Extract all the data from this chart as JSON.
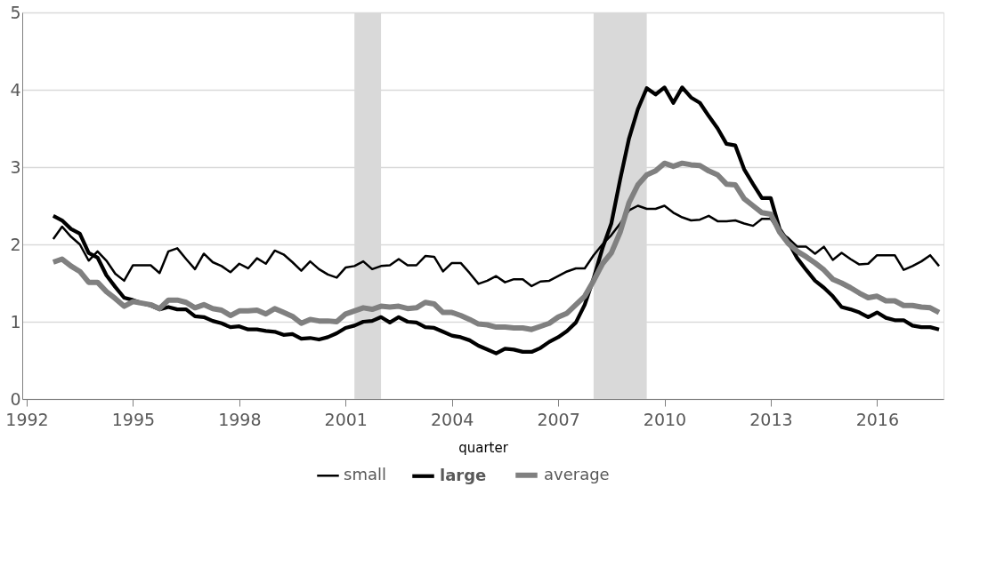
{
  "chart_data": {
    "type": "line",
    "xlabel": "quarter",
    "x": [
      1992.75,
      1993,
      1993.25,
      1993.5,
      1993.75,
      1994,
      1994.25,
      1994.5,
      1994.75,
      1995,
      1995.25,
      1995.5,
      1995.75,
      1996,
      1996.25,
      1996.5,
      1996.75,
      1997,
      1997.25,
      1997.5,
      1997.75,
      1998,
      1998.25,
      1998.5,
      1998.75,
      1999,
      1999.25,
      1999.5,
      1999.75,
      2000,
      2000.25,
      2000.5,
      2000.75,
      2001,
      2001.25,
      2001.5,
      2001.75,
      2002,
      2002.25,
      2002.5,
      2002.75,
      2003,
      2003.25,
      2003.5,
      2003.75,
      2004,
      2004.25,
      2004.5,
      2004.75,
      2005,
      2005.25,
      2005.5,
      2005.75,
      2006,
      2006.25,
      2006.5,
      2006.75,
      2007,
      2007.25,
      2007.5,
      2007.75,
      2008,
      2008.25,
      2008.5,
      2008.75,
      2009,
      2009.25,
      2009.5,
      2009.75,
      2010,
      2010.25,
      2010.5,
      2010.75,
      2011,
      2011.25,
      2011.5,
      2011.75,
      2012,
      2012.25,
      2012.5,
      2012.75,
      2013,
      2013.25,
      2013.5,
      2013.75,
      2014,
      2014.25,
      2014.5,
      2014.75,
      2015,
      2015.25,
      2015.5,
      2015.75,
      2016,
      2016.25,
      2016.5,
      2016.75,
      2017,
      2017.25,
      2017.5,
      2017.75
    ],
    "series": [
      {
        "name": "small",
        "color": "#000000",
        "values": [
          2.07,
          2.23,
          2.1,
          2.0,
          1.79,
          1.91,
          1.79,
          1.62,
          1.53,
          1.73,
          1.73,
          1.73,
          1.63,
          1.91,
          1.95,
          1.81,
          1.68,
          1.88,
          1.77,
          1.72,
          1.64,
          1.75,
          1.69,
          1.82,
          1.75,
          1.92,
          1.87,
          1.77,
          1.66,
          1.78,
          1.68,
          1.61,
          1.57,
          1.7,
          1.72,
          1.78,
          1.68,
          1.72,
          1.73,
          1.81,
          1.73,
          1.73,
          1.85,
          1.84,
          1.65,
          1.76,
          1.76,
          1.63,
          1.49,
          1.53,
          1.59,
          1.51,
          1.55,
          1.55,
          1.46,
          1.52,
          1.53,
          1.59,
          1.65,
          1.69,
          1.69,
          1.86,
          2.0,
          2.12,
          2.27,
          2.44,
          2.5,
          2.46,
          2.46,
          2.5,
          2.41,
          2.35,
          2.31,
          2.32,
          2.37,
          2.3,
          2.3,
          2.31,
          2.27,
          2.24,
          2.33,
          2.33,
          2.16,
          2.08,
          1.97,
          1.97,
          1.88,
          1.97,
          1.8,
          1.89,
          1.81,
          1.74,
          1.75,
          1.86,
          1.86,
          1.86,
          1.67,
          1.72,
          1.78,
          1.86,
          1.72
        ]
      },
      {
        "name": "large",
        "color": "#000000",
        "values": [
          2.37,
          2.31,
          2.2,
          2.14,
          1.89,
          1.83,
          1.6,
          1.45,
          1.31,
          1.28,
          1.24,
          1.21,
          1.16,
          1.19,
          1.16,
          1.16,
          1.07,
          1.06,
          1.01,
          0.98,
          0.93,
          0.94,
          0.9,
          0.9,
          0.88,
          0.87,
          0.83,
          0.84,
          0.78,
          0.79,
          0.77,
          0.8,
          0.85,
          0.92,
          0.95,
          1.0,
          1.01,
          1.06,
          0.99,
          1.06,
          1.0,
          0.99,
          0.93,
          0.92,
          0.87,
          0.82,
          0.8,
          0.76,
          0.69,
          0.64,
          0.59,
          0.65,
          0.64,
          0.61,
          0.61,
          0.66,
          0.74,
          0.8,
          0.88,
          0.99,
          1.22,
          1.56,
          1.95,
          2.27,
          2.84,
          3.37,
          3.75,
          4.02,
          3.94,
          4.03,
          3.83,
          4.03,
          3.9,
          3.83,
          3.66,
          3.5,
          3.3,
          3.28,
          2.97,
          2.78,
          2.6,
          2.6,
          2.2,
          2.03,
          1.82,
          1.67,
          1.53,
          1.44,
          1.33,
          1.19,
          1.16,
          1.12,
          1.06,
          1.12,
          1.05,
          1.02,
          1.02,
          0.95,
          0.93,
          0.93,
          0.9
        ]
      },
      {
        "name": "average",
        "color": "#808080",
        "values": [
          1.77,
          1.81,
          1.72,
          1.65,
          1.51,
          1.51,
          1.39,
          1.3,
          1.2,
          1.26,
          1.24,
          1.22,
          1.17,
          1.28,
          1.28,
          1.25,
          1.18,
          1.22,
          1.17,
          1.15,
          1.08,
          1.14,
          1.14,
          1.15,
          1.1,
          1.17,
          1.12,
          1.07,
          0.98,
          1.03,
          1.01,
          1.01,
          1.0,
          1.1,
          1.14,
          1.18,
          1.16,
          1.2,
          1.19,
          1.2,
          1.17,
          1.18,
          1.25,
          1.23,
          1.12,
          1.12,
          1.08,
          1.03,
          0.97,
          0.96,
          0.93,
          0.93,
          0.92,
          0.92,
          0.9,
          0.94,
          0.98,
          1.06,
          1.11,
          1.22,
          1.33,
          1.53,
          1.75,
          1.89,
          2.16,
          2.54,
          2.77,
          2.9,
          2.95,
          3.05,
          3.01,
          3.05,
          3.03,
          3.02,
          2.95,
          2.9,
          2.78,
          2.77,
          2.59,
          2.5,
          2.41,
          2.39,
          2.16,
          2.01,
          1.91,
          1.84,
          1.76,
          1.67,
          1.55,
          1.5,
          1.44,
          1.37,
          1.31,
          1.33,
          1.27,
          1.27,
          1.21,
          1.21,
          1.19,
          1.18,
          1.12
        ]
      }
    ],
    "bands": [
      {
        "axis": "x",
        "from": 2001.25,
        "to": 2002.0,
        "color": "#d9d9d9"
      },
      {
        "axis": "x",
        "from": 2008.0,
        "to": 2009.5,
        "color": "#d9d9d9"
      }
    ],
    "xlim": [
      1991.875,
      2017.875
    ],
    "xticks": [
      1992,
      1995,
      1998,
      2001,
      2004,
      2007,
      2010,
      2013,
      2016
    ],
    "ylim": [
      0,
      5
    ],
    "yticks": [
      0,
      1,
      2,
      3,
      4,
      5
    ],
    "grid": "y",
    "legend": "bottom"
  }
}
